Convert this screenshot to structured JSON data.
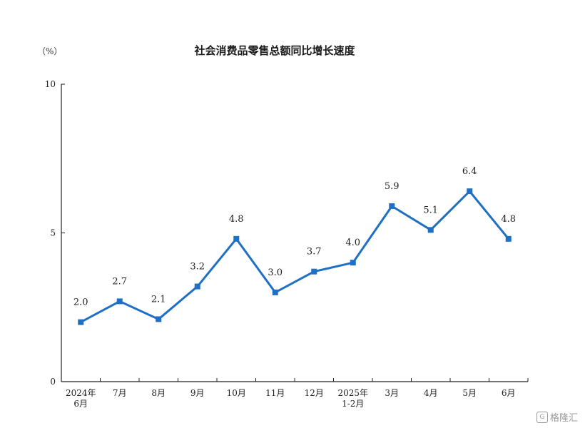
{
  "chart_data": {
    "type": "line",
    "title": "社会消费品零售总额同比增长速度",
    "unit_label": "（%）",
    "ylim": [
      0,
      10
    ],
    "yticks": [
      "0",
      "5",
      "10"
    ],
    "categories": [
      [
        "2024年",
        "6月"
      ],
      [
        "7月"
      ],
      [
        "8月"
      ],
      [
        "9月"
      ],
      [
        "10月"
      ],
      [
        "11月"
      ],
      [
        "12月"
      ],
      [
        "2025年",
        "1-2月"
      ],
      [
        "3月"
      ],
      [
        "4月"
      ],
      [
        "5月"
      ],
      [
        "6月"
      ]
    ],
    "series": [
      {
        "values": [
          2.0,
          2.7,
          2.1,
          3.2,
          4.8,
          3.0,
          3.7,
          4.0,
          5.9,
          5.1,
          6.4,
          4.8
        ],
        "labels": [
          "2.0",
          "2.7",
          "2.1",
          "3.2",
          "4.8",
          "3.0",
          "3.7",
          "4.0",
          "5.9",
          "5.1",
          "6.4",
          "4.8"
        ],
        "color": "#1f6fc5"
      }
    ],
    "grid": false,
    "legend": "none"
  },
  "watermark": {
    "text": "格隆汇",
    "icon": "gelonghui-logo-icon"
  }
}
